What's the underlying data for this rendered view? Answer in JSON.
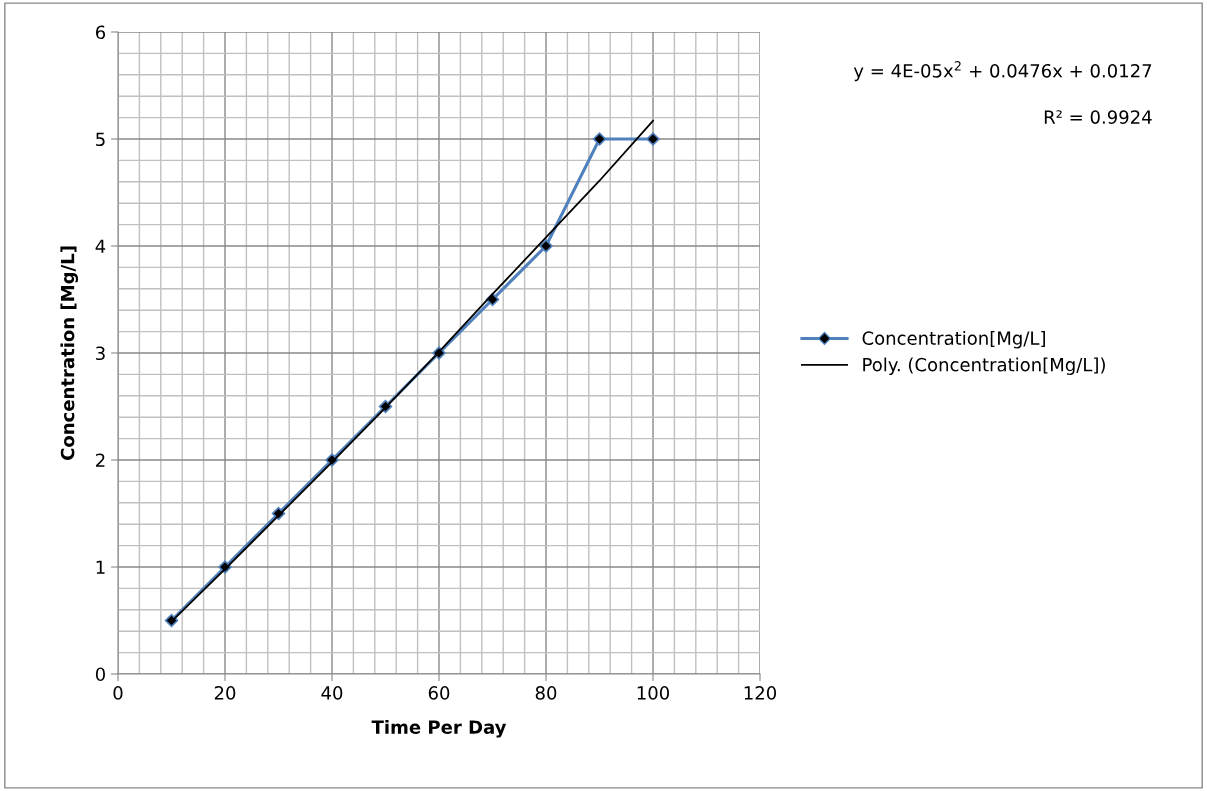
{
  "chart_data": {
    "type": "line",
    "xlabel": "Time Per Day",
    "ylabel": "Concentration [Mg/L]",
    "x": [
      10,
      20,
      30,
      40,
      50,
      60,
      70,
      80,
      90,
      100
    ],
    "series": [
      {
        "name": "Concentration[Mg/L]",
        "color": "#4f81bd",
        "values": [
          0.5,
          1,
          1.5,
          2,
          2.5,
          3,
          3.5,
          4,
          5,
          5
        ],
        "marker": "diamond"
      },
      {
        "name": "Poly. (Concentration[Mg/L])",
        "color": "#000000",
        "x": [
          10,
          20,
          30,
          40,
          50,
          60,
          70,
          80,
          90,
          100
        ],
        "values": [
          0.49,
          0.98,
          1.48,
          1.98,
          2.49,
          3.01,
          3.55,
          4.08,
          4.61,
          5.17
        ],
        "marker": "none"
      }
    ],
    "annotations": [
      "y = 4E-05x$^{2}$ + 0.0476x + 0.0127",
      "R² = 0.9924"
    ],
    "xlim": [
      0,
      120
    ],
    "xticks": [
      0,
      20,
      40,
      60,
      80,
      100,
      120
    ],
    "ylim": [
      0,
      6
    ],
    "yticks": [
      0,
      1,
      2,
      3,
      4,
      5,
      6
    ],
    "grid": true,
    "legend": "right"
  }
}
